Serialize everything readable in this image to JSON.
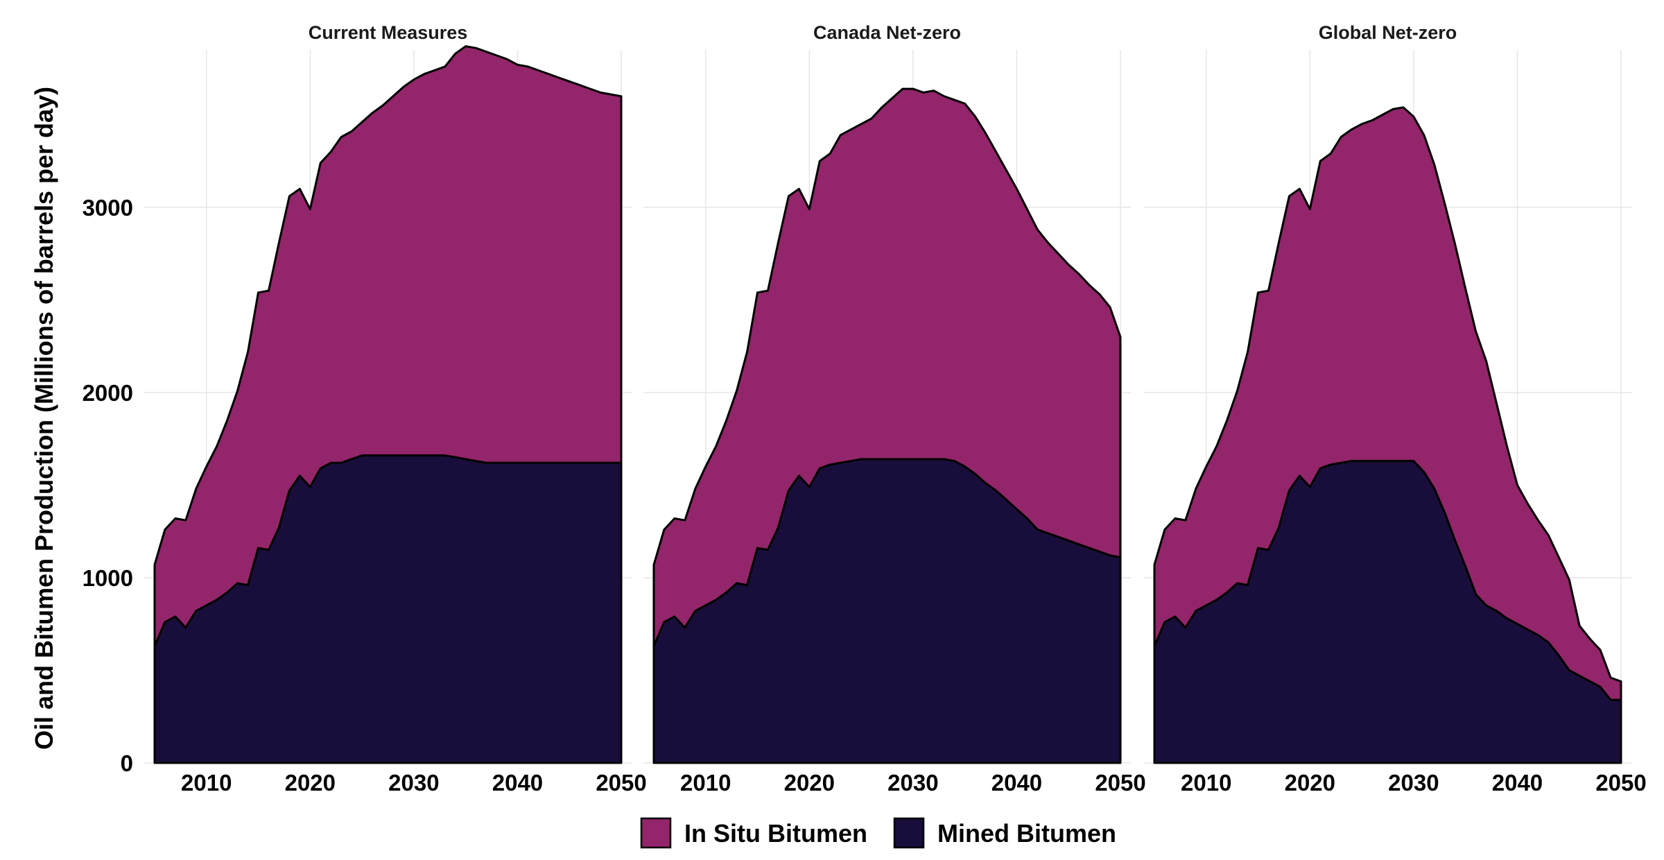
{
  "chart_data": {
    "type": "area",
    "stacked": true,
    "ylabel": "Oil and Bitumen Production (Millions of barrels per day)",
    "xlabel": "",
    "xlim": [
      2004,
      2051
    ],
    "ylim": [
      0,
      3850
    ],
    "xticks": [
      2010,
      2020,
      2030,
      2040,
      2050
    ],
    "yticks": [
      0,
      1000,
      2000,
      3000
    ],
    "grid": true,
    "legend_position": "bottom",
    "series_colors": {
      "In Situ Bitumen": "#93256a",
      "Mined Bitumen": "#190e3b"
    },
    "outline_color": "#000000",
    "legend": [
      "In Situ Bitumen",
      "Mined Bitumen"
    ],
    "panels": [
      {
        "title": "Current Measures",
        "x": [
          2005,
          2006,
          2007,
          2008,
          2009,
          2010,
          2011,
          2012,
          2013,
          2014,
          2015,
          2016,
          2017,
          2018,
          2019,
          2020,
          2021,
          2022,
          2023,
          2024,
          2025,
          2026,
          2027,
          2028,
          2029,
          2030,
          2031,
          2032,
          2033,
          2034,
          2035,
          2036,
          2037,
          2038,
          2039,
          2040,
          2041,
          2042,
          2043,
          2044,
          2045,
          2046,
          2047,
          2048,
          2049,
          2050
        ],
        "series": [
          {
            "name": "Mined Bitumen",
            "values": [
              630,
              760,
              790,
              730,
              820,
              850,
              880,
              920,
              970,
              960,
              1160,
              1150,
              1270,
              1470,
              1550,
              1490,
              1590,
              1620,
              1620,
              1640,
              1660,
              1660,
              1660,
              1660,
              1660,
              1660,
              1660,
              1660,
              1660,
              1650,
              1640,
              1630,
              1620,
              1620,
              1620,
              1620,
              1620,
              1620,
              1620,
              1620,
              1620,
              1620,
              1620,
              1620,
              1620,
              1620
            ]
          },
          {
            "name": "In Situ Bitumen",
            "values": [
              440,
              500,
              530,
              580,
              660,
              750,
              830,
              930,
              1040,
              1260,
              1380,
              1400,
              1540,
              1590,
              1550,
              1500,
              1650,
              1680,
              1760,
              1770,
              1800,
              1850,
              1890,
              1940,
              1990,
              2030,
              2060,
              2080,
              2100,
              2180,
              2230,
              2230,
              2220,
              2200,
              2180,
              2150,
              2140,
              2120,
              2100,
              2080,
              2060,
              2040,
              2020,
              2000,
              1990,
              1980
            ]
          }
        ]
      },
      {
        "title": "Canada Net-zero",
        "x": [
          2005,
          2006,
          2007,
          2008,
          2009,
          2010,
          2011,
          2012,
          2013,
          2014,
          2015,
          2016,
          2017,
          2018,
          2019,
          2020,
          2021,
          2022,
          2023,
          2024,
          2025,
          2026,
          2027,
          2028,
          2029,
          2030,
          2031,
          2032,
          2033,
          2034,
          2035,
          2036,
          2037,
          2038,
          2039,
          2040,
          2041,
          2042,
          2043,
          2044,
          2045,
          2046,
          2047,
          2048,
          2049,
          2050
        ],
        "series": [
          {
            "name": "Mined Bitumen",
            "values": [
              630,
              760,
              790,
              730,
              820,
              850,
              880,
              920,
              970,
              960,
              1160,
              1150,
              1270,
              1470,
              1550,
              1490,
              1590,
              1610,
              1620,
              1630,
              1640,
              1640,
              1640,
              1640,
              1640,
              1640,
              1640,
              1640,
              1640,
              1630,
              1600,
              1560,
              1510,
              1470,
              1420,
              1370,
              1320,
              1260,
              1240,
              1220,
              1200,
              1180,
              1160,
              1140,
              1120,
              1110
            ]
          },
          {
            "name": "In Situ Bitumen",
            "values": [
              440,
              500,
              530,
              580,
              660,
              750,
              830,
              930,
              1040,
              1260,
              1380,
              1400,
              1540,
              1590,
              1550,
              1500,
              1660,
              1680,
              1770,
              1790,
              1810,
              1840,
              1900,
              1950,
              2000,
              2000,
              1980,
              1990,
              1960,
              1950,
              1960,
              1930,
              1890,
              1830,
              1780,
              1730,
              1670,
              1620,
              1570,
              1530,
              1490,
              1460,
              1420,
              1390,
              1340,
              1190
            ]
          }
        ]
      },
      {
        "title": "Global Net-zero",
        "x": [
          2005,
          2006,
          2007,
          2008,
          2009,
          2010,
          2011,
          2012,
          2013,
          2014,
          2015,
          2016,
          2017,
          2018,
          2019,
          2020,
          2021,
          2022,
          2023,
          2024,
          2025,
          2026,
          2027,
          2028,
          2029,
          2030,
          2031,
          2032,
          2033,
          2034,
          2035,
          2036,
          2037,
          2038,
          2039,
          2040,
          2041,
          2042,
          2043,
          2044,
          2045,
          2046,
          2047,
          2048,
          2049,
          2050
        ],
        "series": [
          {
            "name": "Mined Bitumen",
            "values": [
              630,
              760,
              790,
              730,
              820,
              850,
              880,
              920,
              970,
              960,
              1160,
              1150,
              1270,
              1470,
              1550,
              1490,
              1590,
              1610,
              1620,
              1630,
              1630,
              1630,
              1630,
              1630,
              1630,
              1630,
              1570,
              1480,
              1350,
              1200,
              1060,
              910,
              850,
              820,
              780,
              750,
              720,
              690,
              650,
              580,
              500,
              470,
              440,
              410,
              340,
              340
            ]
          },
          {
            "name": "In Situ Bitumen",
            "values": [
              440,
              500,
              530,
              580,
              660,
              750,
              830,
              930,
              1040,
              1260,
              1380,
              1400,
              1540,
              1590,
              1550,
              1500,
              1660,
              1680,
              1760,
              1790,
              1820,
              1840,
              1870,
              1900,
              1910,
              1860,
              1820,
              1750,
              1670,
              1600,
              1500,
              1420,
              1320,
              1120,
              930,
              750,
              680,
              620,
              580,
              530,
              490,
              270,
              230,
              200,
              120,
              100
            ]
          }
        ]
      }
    ]
  }
}
